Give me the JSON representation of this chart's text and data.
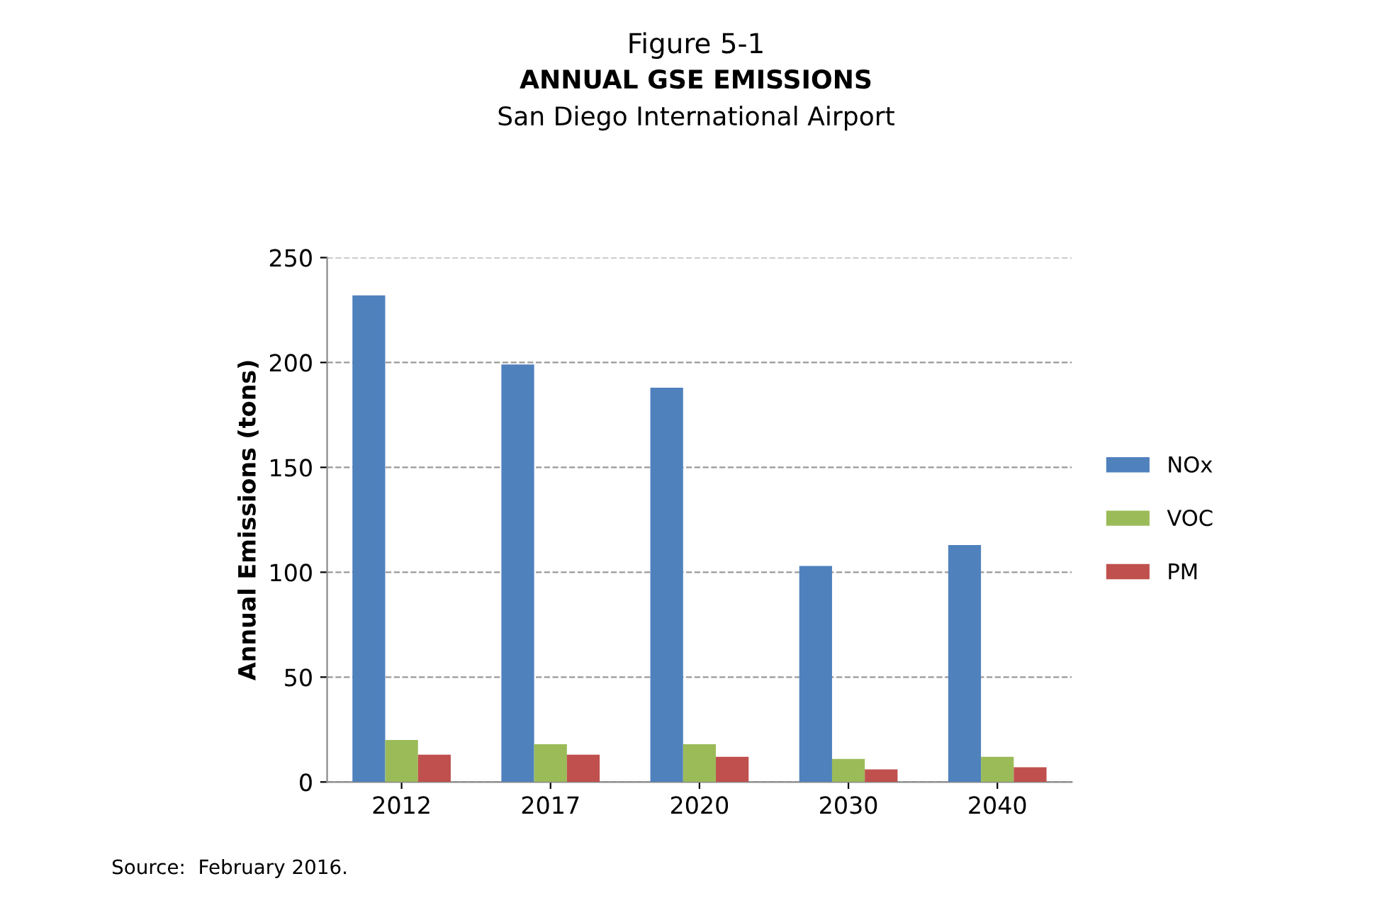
{
  "chart_data": {
    "type": "bar",
    "title": "Figure 5-1",
    "subtitle": "ANNUAL GSE EMISSIONS\nSan Diego International Airport",
    "ylabel": "Annual Emissions (tons)",
    "categories": [
      "2012",
      "2017",
      "2020",
      "2030",
      "2040"
    ],
    "series": [
      {
        "name": "NOx",
        "color": "#4f81bd",
        "values": [
          232,
          199,
          188,
          103,
          113
        ]
      },
      {
        "name": "VOC",
        "color": "#9bbb59",
        "values": [
          20,
          18,
          18,
          11,
          12
        ]
      },
      {
        "name": "PM",
        "color": "#c0504d",
        "values": [
          13,
          13,
          12,
          6,
          7
        ]
      }
    ],
    "ylim": [
      0,
      250
    ],
    "yticks": [
      0,
      50,
      100,
      150,
      200,
      250
    ],
    "grid": "y",
    "legend": "right",
    "annotations": [
      "Source:  February 2016."
    ]
  }
}
